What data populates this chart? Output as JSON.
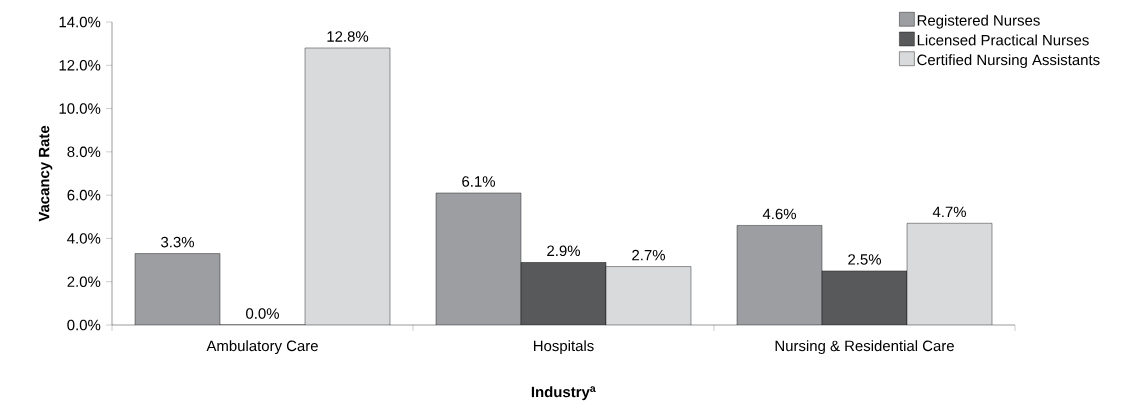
{
  "chart_data": {
    "type": "bar",
    "xlabel": "Industry$^{a}$",
    "ylabel": "Vacancy Rate",
    "categories": [
      "Ambulatory Care",
      "Hospitals",
      "Nursing & Residential Care"
    ],
    "series": [
      {
        "name": "Registered Nurses",
        "color": "#9d9ea2",
        "values": [
          3.3,
          6.1,
          4.6
        ],
        "value_labels": [
          "3.3%",
          "6.1%",
          "4.6%"
        ]
      },
      {
        "name": "Licensed Practical Nurses",
        "color": "#58595b",
        "values": [
          0.0,
          2.9,
          2.5
        ],
        "value_labels": [
          "0.0%",
          "2.9%",
          "2.5%"
        ]
      },
      {
        "name": "Certified Nursing Assistants",
        "color": "#d9dadb",
        "values": [
          12.8,
          2.7,
          4.7
        ],
        "value_labels": [
          "12.8%",
          "2.7%",
          "4.7%"
        ]
      }
    ],
    "ylim": [
      0,
      14
    ],
    "yticks": [
      {
        "value": 0,
        "label": "0.0%"
      },
      {
        "value": 2,
        "label": "2.0%"
      },
      {
        "value": 4,
        "label": "4.0%"
      },
      {
        "value": 6,
        "label": "6.0%"
      },
      {
        "value": 8,
        "label": "8.0%"
      },
      {
        "value": 10,
        "label": "10.0%"
      },
      {
        "value": 12,
        "label": "12.0%"
      },
      {
        "value": 14,
        "label": "14.0%"
      }
    ],
    "grid": false,
    "legend": "top right"
  }
}
